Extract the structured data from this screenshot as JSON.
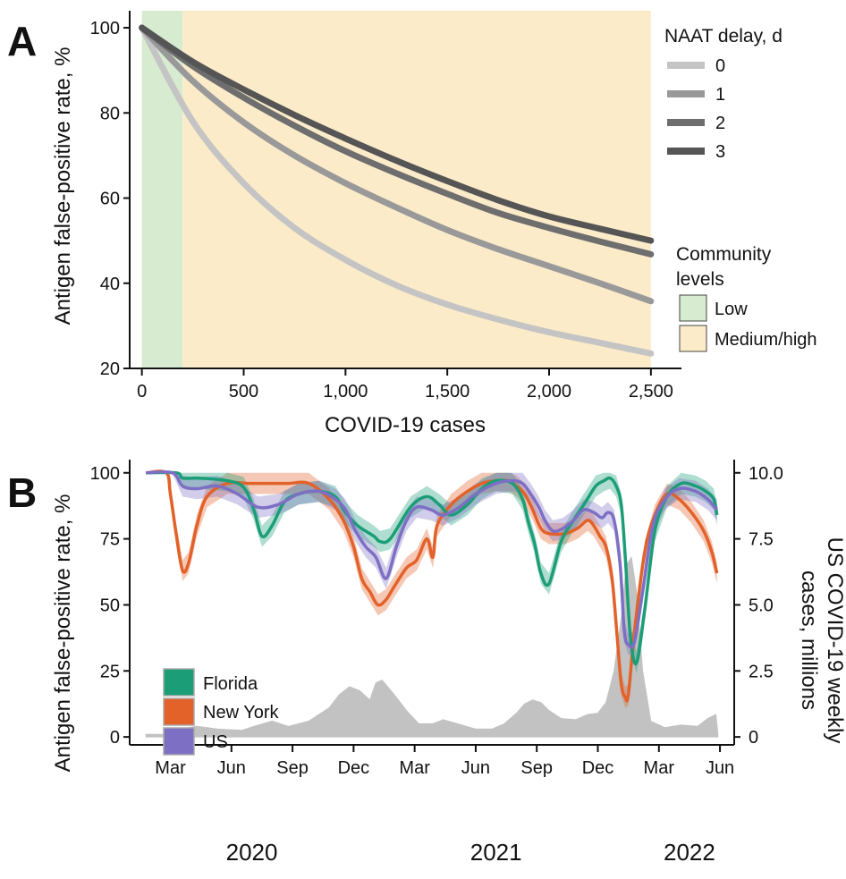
{
  "colors": {
    "low_band": "#d6ebcf",
    "high_band": "#fcebc9",
    "delay0": "#c4c4c4",
    "delay1": "#999999",
    "delay2": "#6e6e6e",
    "delay3": "#555555",
    "florida": "#1b9e77",
    "new_york": "#e2622a",
    "us": "#7d6fc4",
    "cases": "#c2c2c2"
  },
  "chart_data": [
    {
      "panel": "A",
      "type": "line",
      "xlabel": "COVID-19 cases",
      "ylabel": "Antigen false-positive rate, %",
      "xlim": [
        -60,
        2650
      ],
      "ylim": [
        20,
        104
      ],
      "xticks": [
        0,
        500,
        1000,
        1500,
        2000,
        2500
      ],
      "xtick_labels": [
        "0",
        "500",
        "1,000",
        "1,500",
        "2,000",
        "2,500"
      ],
      "yticks": [
        20,
        40,
        60,
        80,
        100
      ],
      "yticklabels": [
        "20",
        "40",
        "60",
        "80",
        "100"
      ],
      "grid": false,
      "legend": {
        "title": "NAAT delay, d",
        "position": "right",
        "entries": [
          "0",
          "1",
          "2",
          "3"
        ]
      },
      "bands_legend": {
        "title_lines": [
          "Community",
          "levels"
        ],
        "entries": [
          "Low",
          "Medium/high"
        ]
      },
      "bands": [
        {
          "name": "Low",
          "x": [
            0,
            200
          ]
        },
        {
          "name": "Medium/high",
          "x": [
            200,
            2500
          ]
        }
      ],
      "x": [
        0,
        250,
        500,
        750,
        1000,
        1250,
        1500,
        1750,
        2000,
        2250,
        2500
      ],
      "series": [
        {
          "name": "0",
          "values": [
            100,
            78,
            63.5,
            53,
            45.5,
            39.5,
            35,
            31.5,
            28.5,
            26,
            23.5
          ]
        },
        {
          "name": "1",
          "values": [
            100,
            87.5,
            77.8,
            70,
            63.5,
            57.8,
            52.5,
            48,
            44,
            40,
            35.8
          ]
        },
        {
          "name": "2",
          "values": [
            100,
            91,
            83.6,
            77,
            71,
            65.8,
            61,
            56.5,
            53,
            49.8,
            46.8
          ]
        },
        {
          "name": "3",
          "values": [
            100,
            92,
            85.5,
            79.5,
            74,
            68.8,
            64,
            59.5,
            55.7,
            52.8,
            50
          ]
        }
      ]
    },
    {
      "panel": "B",
      "type": "line",
      "xlabel": "",
      "ylabel": "Antigen false-positive rate, %",
      "y2label_lines": [
        "US COVID-19 weekly",
        "cases, millions"
      ],
      "ylim": [
        -3,
        105
      ],
      "y2lim": [
        -0.3,
        10.5
      ],
      "yticks": [
        0,
        25,
        50,
        75,
        100
      ],
      "yticklabels": [
        "0",
        "25",
        "50",
        "75",
        "100"
      ],
      "y2ticks": [
        0,
        2.5,
        5,
        7.5,
        10
      ],
      "y2ticklabels": [
        "0",
        "2.5",
        "5.0",
        "7.5",
        "10.0"
      ],
      "xlim": [
        -0.8,
        28.9
      ],
      "xticks": [
        1.2,
        4.2,
        7.2,
        10.2,
        13.2,
        16.2,
        19.2,
        22.2,
        25.2,
        28.2
      ],
      "xticklabels": [
        "Mar",
        "Jun",
        "Sep",
        "Dec",
        "Mar",
        "Jun",
        "Sep",
        "Dec",
        "Mar",
        "Jun"
      ],
      "year_labels": [
        {
          "label": "2020",
          "x": 5.2
        },
        {
          "label": "2021",
          "x": 17.2
        },
        {
          "label": "2022",
          "x": 26.7
        }
      ],
      "grid": false,
      "legend": {
        "position": "bottom-left",
        "entries": [
          "Florida",
          "New York",
          "US"
        ]
      },
      "cases": {
        "name": "US COVID-19 weekly cases, millions",
        "x": [
          0,
          1.2,
          1.6,
          2.5,
          3.5,
          4.7,
          5.3,
          6.2,
          7.0,
          8.0,
          9.0,
          9.5,
          10.0,
          10.5,
          11.0,
          11.3,
          11.6,
          12.2,
          12.8,
          13.4,
          14.1,
          14.6,
          15.3,
          16.2,
          17.0,
          17.6,
          18.2,
          18.6,
          19.0,
          19.4,
          19.8,
          20.4,
          21.1,
          21.7,
          22.2,
          22.6,
          23.0,
          23.35,
          23.6,
          23.85,
          24.1,
          24.4,
          24.8,
          25.5,
          26.3,
          27.1,
          27.6,
          28.0,
          28.1
        ],
        "values": [
          0.1,
          0.1,
          0.3,
          0.4,
          0.3,
          0.25,
          0.4,
          0.6,
          0.4,
          0.6,
          1.1,
          1.6,
          1.9,
          1.75,
          1.4,
          2.05,
          2.15,
          1.6,
          1.0,
          0.5,
          0.5,
          0.65,
          0.5,
          0.3,
          0.3,
          0.5,
          0.9,
          1.25,
          1.4,
          1.3,
          1.0,
          0.7,
          0.65,
          0.85,
          0.9,
          1.3,
          2.5,
          4.5,
          6.5,
          6.8,
          5.5,
          2.5,
          0.6,
          0.35,
          0.45,
          0.4,
          0.7,
          0.85,
          0.1
        ]
      },
      "series": [
        {
          "name": "Florida",
          "x": [
            0,
            1.5,
            1.8,
            2.6,
            4.0,
            4.8,
            5.3,
            5.7,
            6.2,
            6.8,
            7.5,
            8.5,
            9.3,
            9.8,
            10.4,
            11.2,
            11.5,
            12.0,
            13.0,
            13.8,
            14.4,
            15.0,
            15.8,
            16.5,
            17.2,
            18.0,
            18.5,
            18.8,
            19.1,
            19.4,
            19.8,
            20.4,
            21.0,
            21.6,
            22.1,
            22.5,
            22.8,
            23.1,
            23.35,
            23.55,
            23.8,
            24.1,
            24.5,
            25.0,
            25.6,
            26.3,
            27.0,
            27.5,
            27.9,
            28.05
          ],
          "values": [
            100,
            100,
            98,
            98,
            97,
            94.5,
            86,
            76,
            80,
            89,
            92,
            93,
            91,
            85,
            80,
            76,
            74,
            75,
            87,
            91,
            88,
            84,
            88,
            94,
            97,
            96,
            90,
            81,
            73,
            62,
            58,
            74,
            82,
            89,
            95,
            97,
            98,
            95,
            88,
            68,
            38,
            28,
            48,
            78,
            91,
            96,
            95,
            93,
            90,
            84
          ]
        },
        {
          "name": "New York",
          "x": [
            0,
            1.0,
            1.2,
            1.5,
            1.8,
            2.1,
            2.5,
            3.0,
            4.0,
            5.0,
            6.0,
            7.0,
            8.0,
            9.0,
            9.7,
            10.2,
            10.6,
            11.0,
            11.4,
            11.8,
            12.2,
            12.8,
            13.3,
            13.8,
            14.1,
            14.3,
            15.0,
            15.8,
            16.5,
            17.2,
            17.8,
            18.2,
            18.6,
            19.0,
            19.4,
            19.8,
            20.6,
            21.2,
            21.7,
            22.0,
            22.3,
            22.6,
            22.9,
            23.15,
            23.35,
            23.55,
            23.7,
            24.0,
            24.5,
            25.0,
            25.6,
            26.2,
            26.8,
            27.4,
            27.8,
            28.05
          ],
          "values": [
            100,
            100,
            92,
            76,
            63,
            66,
            80,
            91,
            96,
            96,
            96,
            96,
            96,
            90,
            82,
            72,
            60,
            55,
            50,
            52,
            57,
            64,
            67,
            75,
            68,
            80,
            88,
            93,
            96,
            97,
            97,
            95,
            92,
            86,
            79,
            77,
            77,
            79,
            82,
            80,
            76,
            72,
            60,
            38,
            20,
            15,
            16,
            40,
            70,
            84,
            92,
            90,
            85,
            78,
            70,
            62
          ]
        },
        {
          "name": "US",
          "x": [
            0,
            1.3,
            1.8,
            2.5,
            3.5,
            4.5,
            5.5,
            6.5,
            7.5,
            8.5,
            9.3,
            9.8,
            10.3,
            10.8,
            11.3,
            11.8,
            12.3,
            12.8,
            13.3,
            14.0,
            14.6,
            15.4,
            16.2,
            17.2,
            18.0,
            18.5,
            18.9,
            19.3,
            19.6,
            20.0,
            20.5,
            21.0,
            21.5,
            22.0,
            22.4,
            22.7,
            23.0,
            23.3,
            23.5,
            23.7,
            24.0,
            24.4,
            24.9,
            25.5,
            26.2,
            27.0,
            27.6,
            28.05
          ],
          "values": [
            100,
            100,
            95,
            94,
            95,
            92,
            87,
            88,
            92,
            93,
            90,
            86,
            78,
            72,
            68,
            60,
            72,
            82,
            87,
            86,
            84,
            87,
            92,
            96,
            97,
            96,
            92,
            87,
            82,
            78,
            79,
            82,
            86,
            85,
            83,
            85,
            82,
            65,
            40,
            35,
            36,
            55,
            80,
            90,
            94,
            93,
            90,
            86
          ]
        }
      ]
    }
  ]
}
